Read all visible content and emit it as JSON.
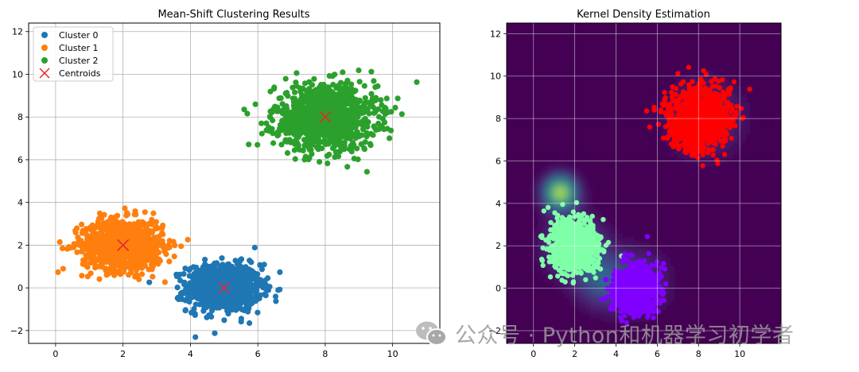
{
  "chart_data": [
    {
      "type": "scatter",
      "title": "Mean-Shift Clustering Results",
      "xlabel": "",
      "ylabel": "",
      "xlim": [
        -0.8,
        11.4
      ],
      "ylim": [
        -2.6,
        12.4
      ],
      "xticks": [
        "0",
        "2",
        "4",
        "6",
        "8",
        "10"
      ],
      "xtick_values": [
        0,
        2,
        4,
        6,
        8,
        10
      ],
      "yticks": [
        "−2",
        "0",
        "2",
        "4",
        "6",
        "8",
        "10",
        "12"
      ],
      "ytick_values": [
        -2,
        0,
        2,
        4,
        6,
        8,
        10,
        12
      ],
      "grid": true,
      "legend_position": "top-left",
      "series": [
        {
          "name": "Cluster 0",
          "color": "#1f77b4",
          "center": [
            5.0,
            0.0
          ],
          "spread": 0.55,
          "count": 900
        },
        {
          "name": "Cluster 1",
          "color": "#ff7f0e",
          "center": [
            2.0,
            2.0
          ],
          "spread": 0.6,
          "count": 900
        },
        {
          "name": "Cluster 2",
          "color": "#2ca02c",
          "center": [
            8.0,
            8.0
          ],
          "spread": 0.75,
          "count": 1100
        }
      ],
      "centroids": {
        "name": "Centroids",
        "color": "#e8262a",
        "points": [
          [
            5.0,
            0.0
          ],
          [
            2.0,
            2.0
          ],
          [
            8.0,
            8.0
          ]
        ]
      }
    },
    {
      "type": "heatmap",
      "title": "Kernel Density Estimation",
      "xlabel": "",
      "ylabel": "",
      "xlim": [
        -1.3,
        12.0
      ],
      "ylim": [
        -2.6,
        12.5
      ],
      "xticks": [
        "0",
        "2",
        "4",
        "6",
        "8",
        "10"
      ],
      "xtick_values": [
        0,
        2,
        4,
        6,
        8,
        10
      ],
      "yticks": [
        "−2",
        "0",
        "2",
        "4",
        "6",
        "8",
        "10",
        "12"
      ],
      "ytick_values": [
        -2,
        0,
        2,
        4,
        6,
        8,
        10,
        12
      ],
      "grid": true,
      "colormap": "viridis",
      "background": "#440154",
      "density_peaks": [
        {
          "center": [
            1.3,
            4.5
          ],
          "weight": 1.0,
          "sigma": 0.5
        },
        {
          "center": [
            2.0,
            2.0
          ],
          "weight": 0.35,
          "sigma": 0.9
        },
        {
          "center": [
            3.3,
            0.4
          ],
          "weight": 0.32,
          "sigma": 0.8
        },
        {
          "center": [
            5.0,
            0.3
          ],
          "weight": 0.18,
          "sigma": 1.0
        },
        {
          "center": [
            8.3,
            8.0
          ],
          "weight": 0.22,
          "sigma": 1.1
        }
      ],
      "series": [
        {
          "color": "#7fffa8",
          "center": [
            2.0,
            2.0
          ],
          "spread": 0.6,
          "count": 900
        },
        {
          "color": "#8000ff",
          "center": [
            5.0,
            0.0
          ],
          "spread": 0.55,
          "count": 900
        },
        {
          "color": "#ff0000",
          "center": [
            8.0,
            8.0
          ],
          "spread": 0.75,
          "count": 1100
        }
      ]
    }
  ],
  "watermark": {
    "icon": "wechat-icon",
    "text": "公众号 · Python和机器学习初学者"
  }
}
